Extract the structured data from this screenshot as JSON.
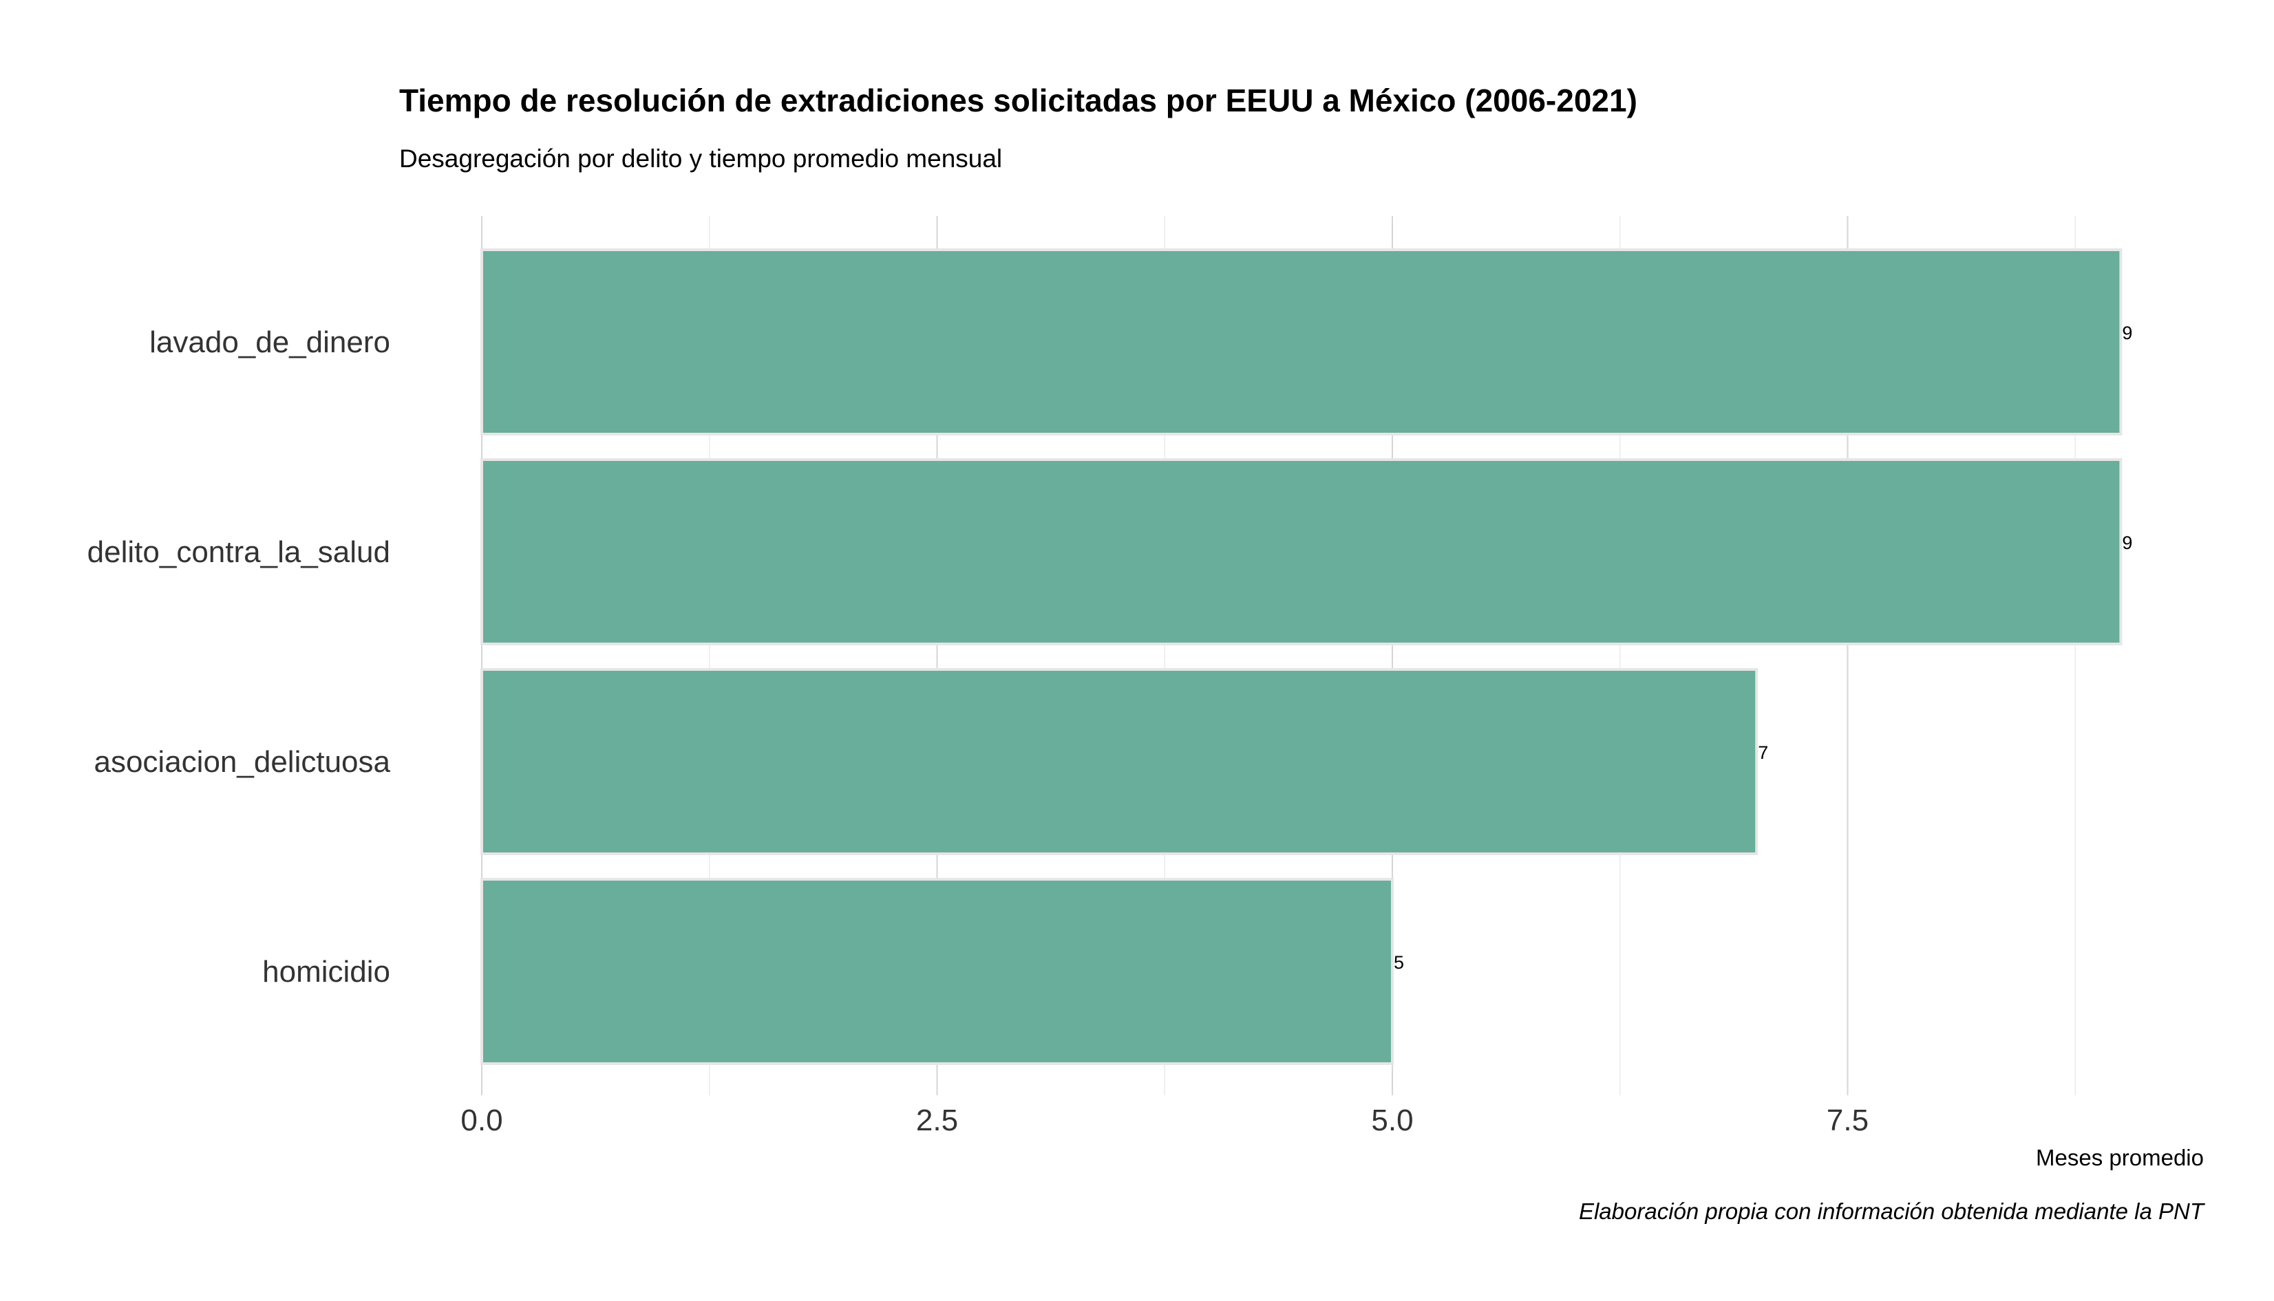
{
  "chart_data": {
    "type": "bar",
    "orientation": "horizontal",
    "title": "Tiempo de resolución de extradiciones solicitadas por EEUU a México (2006-2021)",
    "subtitle": "Desagregación por delito y tiempo promedio mensual",
    "categories": [
      "lavado_de_dinero",
      "delito_contra_la_salud",
      "asociacion_delictuosa",
      "homicidio"
    ],
    "values": [
      9,
      9,
      7,
      5
    ],
    "value_labels": [
      "9",
      "9",
      "7",
      "5"
    ],
    "xlabel": "Meses promedio",
    "ylabel": "",
    "xlim": [
      0,
      9
    ],
    "x_ticks": [
      0,
      2.5,
      5,
      7.5
    ],
    "x_tick_labels": [
      "0.0",
      "2.5",
      "5.0",
      "7.5"
    ],
    "grid": true,
    "legend": "none",
    "caption": "Elaboración propia con información obtenida mediante la PNT",
    "bar_color": "#69ad9b"
  }
}
